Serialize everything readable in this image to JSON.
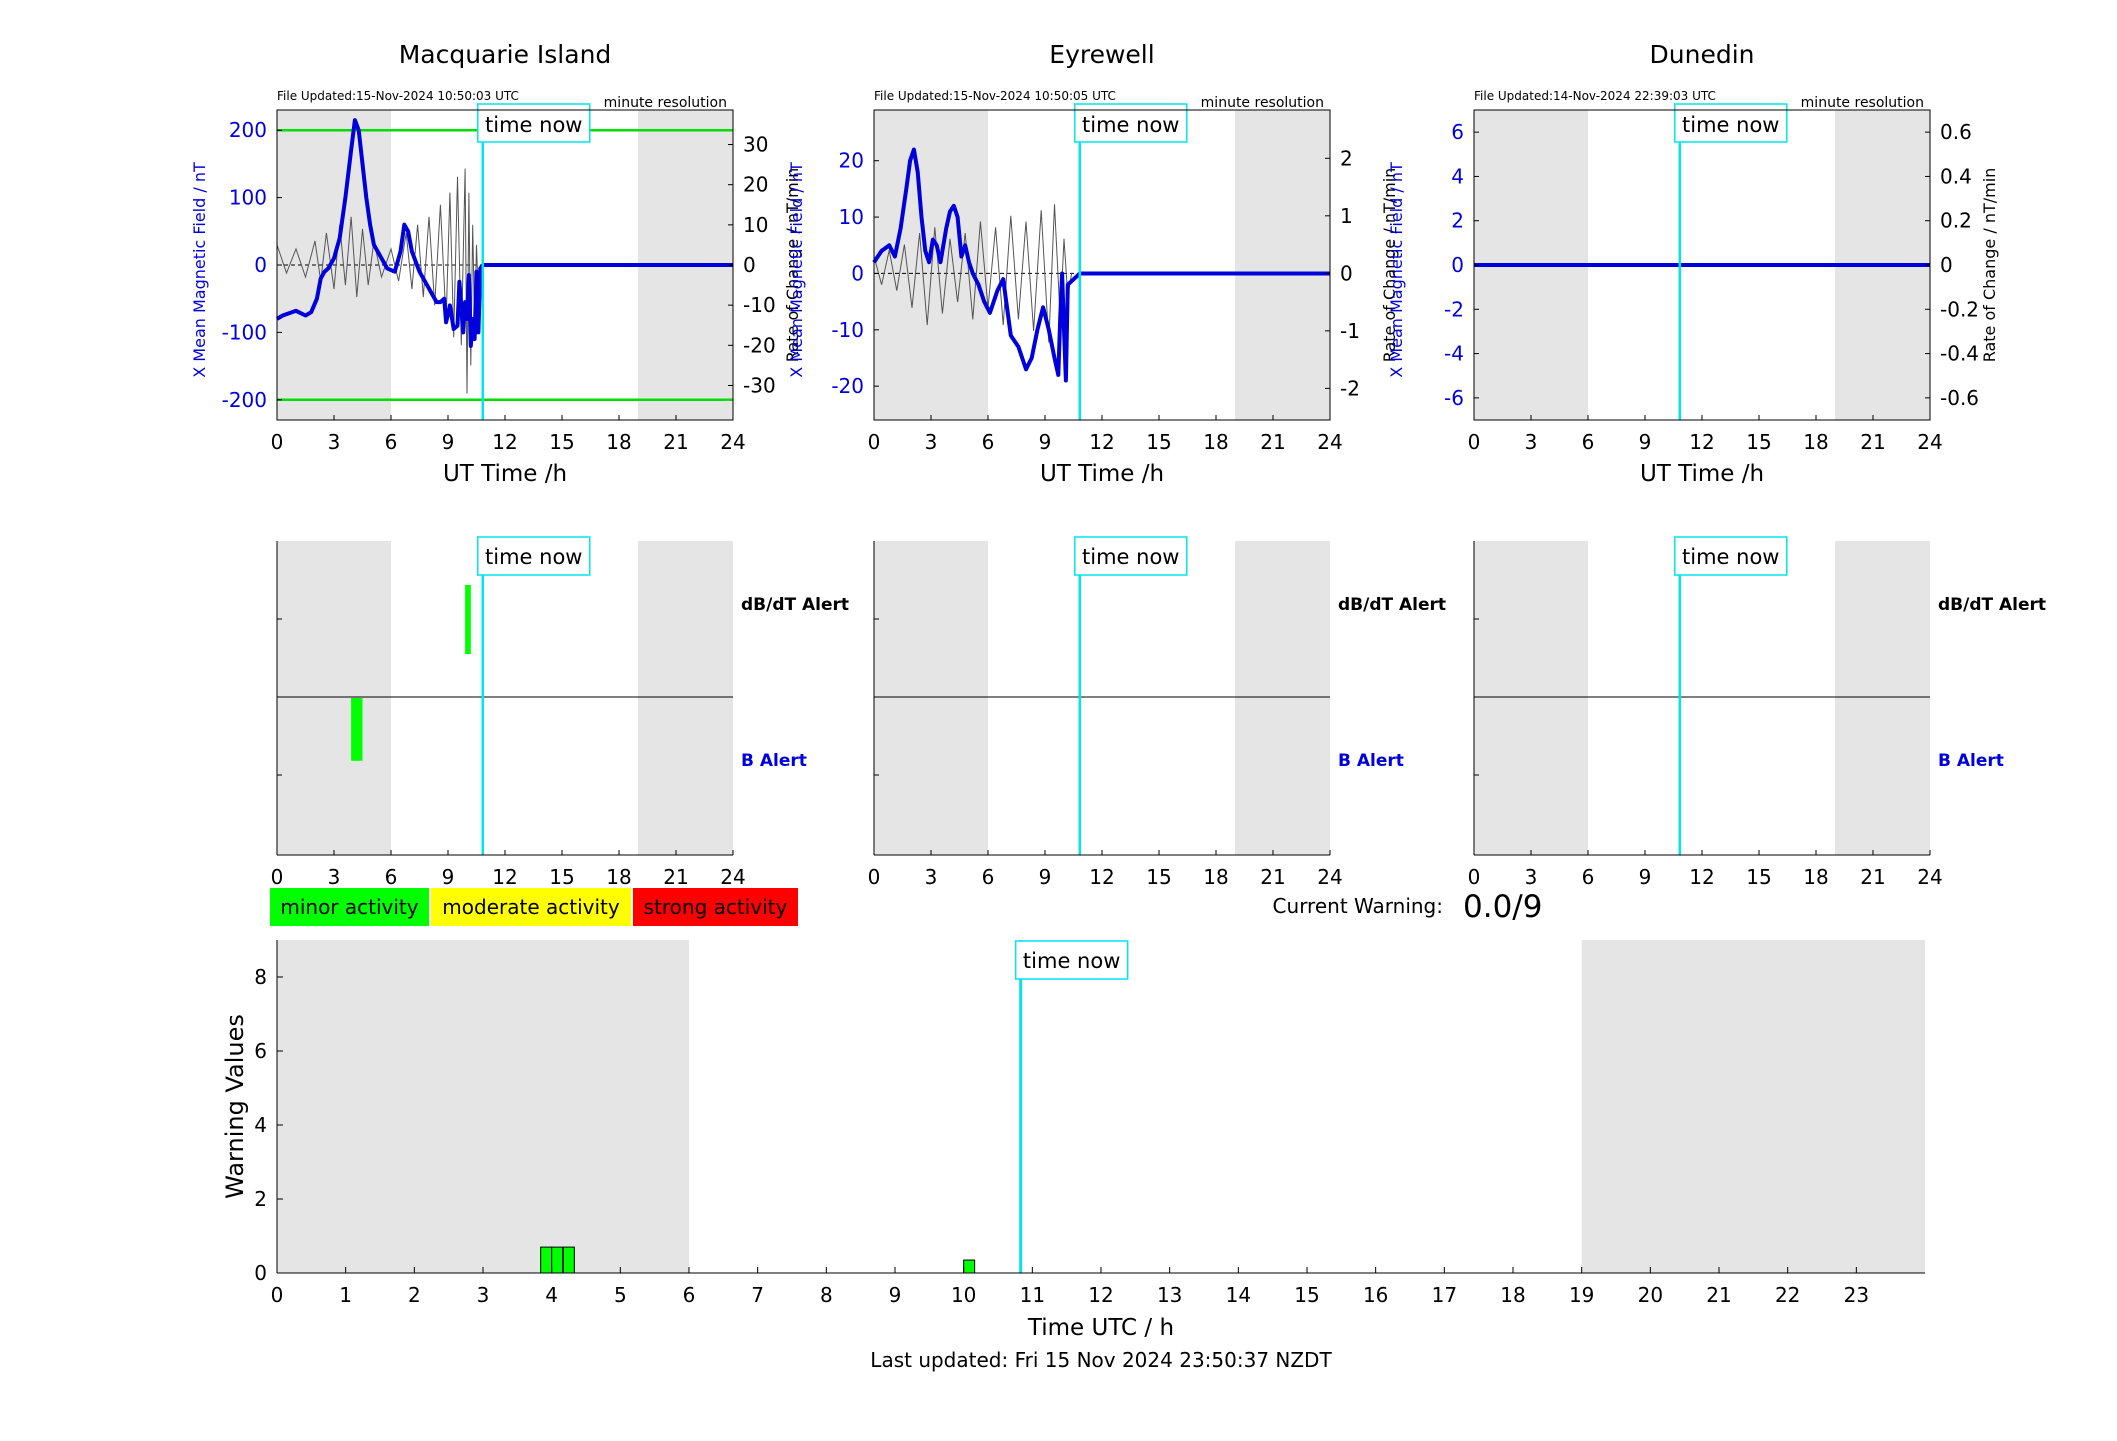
{
  "page": {
    "current_warning_label": "Current Warning:",
    "current_warning_value": "0.0/9",
    "last_updated": "Last updated: Fri 15 Nov 2024 23:50:37 NZDT",
    "time_now_label": "time now",
    "time_now_hour": 10.83,
    "night_shading": [
      [
        0,
        6
      ],
      [
        19,
        24
      ]
    ],
    "minute_resolution_label": "minute resolution",
    "rate_axis_label": "Rate of Change / nT/min",
    "b_axis_label": "X Mean Magnetic Field / nT",
    "ut_axis_label": "UT Time /h",
    "dbdt_alert_label": "dB/dT Alert",
    "b_alert_label": "B Alert",
    "hour_ticks": [
      "0",
      "3",
      "6",
      "9",
      "12",
      "15",
      "18",
      "21",
      "24"
    ]
  },
  "colors": {
    "b_line": "#0000dd",
    "rate_line": "#555555",
    "threshold": "#00dd00",
    "time_now": "#00e5ee",
    "night": "#e5e5e5",
    "minor": "#00ff00",
    "moderate": "#ffff00",
    "strong": "#ff0000"
  },
  "legend": {
    "minor": "minor activity",
    "moderate": "moderate activity",
    "strong": "strong activity"
  },
  "stations": [
    {
      "name": "Macquarie Island",
      "file_updated": "File Updated:15-Nov-2024 10:50:03 UTC",
      "ylim_b": [
        -230,
        230
      ],
      "yticks_b": [
        "200",
        "100",
        "0",
        "-100",
        "-200"
      ],
      "yticks_b_values": [
        200,
        100,
        0,
        -100,
        -200
      ],
      "ylim_rate": [
        -38.6,
        38.6
      ],
      "yticks_rate": [
        "30",
        "20",
        "10",
        "0",
        "-10",
        "-20",
        "-30"
      ],
      "yticks_rate_values": [
        30,
        20,
        10,
        0,
        -10,
        -20,
        -30
      ],
      "thresholds": [
        200,
        -200
      ],
      "b_series": [
        [
          0,
          -80
        ],
        [
          0.3,
          -75
        ],
        [
          0.6,
          -72
        ],
        [
          1,
          -68
        ],
        [
          1.5,
          -75
        ],
        [
          1.8,
          -70
        ],
        [
          2.1,
          -50
        ],
        [
          2.3,
          -20
        ],
        [
          2.5,
          -10
        ],
        [
          2.7,
          -5
        ],
        [
          3,
          10
        ],
        [
          3.3,
          40
        ],
        [
          3.6,
          100
        ],
        [
          3.9,
          170
        ],
        [
          4.1,
          215
        ],
        [
          4.3,
          200
        ],
        [
          4.5,
          150
        ],
        [
          4.7,
          100
        ],
        [
          4.9,
          60
        ],
        [
          5.1,
          30
        ],
        [
          5.4,
          15
        ],
        [
          5.8,
          -5
        ],
        [
          6.2,
          -10
        ],
        [
          6.5,
          20
        ],
        [
          6.7,
          60
        ],
        [
          6.9,
          50
        ],
        [
          7.1,
          20
        ],
        [
          7.3,
          5
        ],
        [
          7.5,
          -10
        ],
        [
          7.8,
          -25
        ],
        [
          8.1,
          -40
        ],
        [
          8.4,
          -55
        ],
        [
          8.6,
          -55
        ],
        [
          8.8,
          -50
        ],
        [
          8.9,
          -85
        ],
        [
          9.1,
          -60
        ],
        [
          9.3,
          -95
        ],
        [
          9.5,
          -90
        ],
        [
          9.6,
          -25
        ],
        [
          9.8,
          -100
        ],
        [
          9.9,
          -55
        ],
        [
          10,
          -80
        ],
        [
          10.1,
          -15
        ],
        [
          10.2,
          -120
        ],
        [
          10.3,
          -80
        ],
        [
          10.4,
          -110
        ],
        [
          10.5,
          -10
        ],
        [
          10.6,
          -100
        ],
        [
          10.7,
          -5
        ],
        [
          10.83,
          0
        ],
        [
          24,
          0
        ]
      ],
      "rate_series": [
        [
          0,
          5
        ],
        [
          0.5,
          -2
        ],
        [
          1,
          4
        ],
        [
          1.5,
          -3
        ],
        [
          2,
          6
        ],
        [
          2.3,
          -4
        ],
        [
          2.6,
          8
        ],
        [
          3,
          -6
        ],
        [
          3.3,
          10
        ],
        [
          3.6,
          -5
        ],
        [
          3.9,
          12
        ],
        [
          4.2,
          -8
        ],
        [
          4.5,
          9
        ],
        [
          4.8,
          -5
        ],
        [
          5.1,
          6
        ],
        [
          5.5,
          -3
        ],
        [
          6,
          4
        ],
        [
          6.4,
          -4
        ],
        [
          6.8,
          8
        ],
        [
          7.1,
          -6
        ],
        [
          7.4,
          10
        ],
        [
          7.7,
          -8
        ],
        [
          8,
          12
        ],
        [
          8.3,
          -10
        ],
        [
          8.6,
          15
        ],
        [
          8.9,
          -14
        ],
        [
          9.1,
          18
        ],
        [
          9.3,
          -18
        ],
        [
          9.5,
          22
        ],
        [
          9.7,
          -20
        ],
        [
          9.9,
          24
        ],
        [
          10,
          -32
        ],
        [
          10.1,
          18
        ],
        [
          10.2,
          -25
        ],
        [
          10.3,
          10
        ],
        [
          10.4,
          -15
        ],
        [
          10.5,
          5
        ],
        [
          10.6,
          -8
        ],
        [
          10.7,
          0
        ]
      ],
      "dbdt_alerts": [
        [
          9.9,
          10.2,
          0.14,
          0.36
        ]
      ],
      "b_alerts": [
        [
          3.9,
          4.5,
          0.5,
          0.7
        ]
      ]
    },
    {
      "name": "Eyrewell",
      "file_updated": "File Updated:15-Nov-2024 10:50:05 UTC",
      "ylim_b": [
        -26,
        29
      ],
      "yticks_b": [
        "20",
        "10",
        "0",
        "-10",
        "-20"
      ],
      "yticks_b_values": [
        20,
        10,
        0,
        -10,
        -20
      ],
      "ylim_rate": [
        -2.55,
        2.84
      ],
      "yticks_rate": [
        "2",
        "1",
        "0",
        "-1",
        "-2"
      ],
      "yticks_rate_values": [
        2,
        1,
        0,
        -1,
        -2
      ],
      "thresholds": [],
      "b_series": [
        [
          0,
          2
        ],
        [
          0.4,
          4
        ],
        [
          0.8,
          5
        ],
        [
          1.1,
          3
        ],
        [
          1.4,
          8
        ],
        [
          1.7,
          15
        ],
        [
          1.9,
          20
        ],
        [
          2.1,
          22
        ],
        [
          2.3,
          18
        ],
        [
          2.5,
          10
        ],
        [
          2.7,
          4
        ],
        [
          2.9,
          2
        ],
        [
          3.1,
          6
        ],
        [
          3.3,
          5
        ],
        [
          3.5,
          2
        ],
        [
          3.8,
          8
        ],
        [
          4,
          11
        ],
        [
          4.2,
          12
        ],
        [
          4.4,
          10
        ],
        [
          4.6,
          3
        ],
        [
          4.8,
          5
        ],
        [
          5,
          2
        ],
        [
          5.2,
          0
        ],
        [
          5.5,
          -2
        ],
        [
          5.8,
          -5
        ],
        [
          6.1,
          -7
        ],
        [
          6.5,
          -3
        ],
        [
          6.8,
          -1
        ],
        [
          7,
          -6
        ],
        [
          7.2,
          -11
        ],
        [
          7.4,
          -12
        ],
        [
          7.6,
          -13
        ],
        [
          7.8,
          -15
        ],
        [
          8,
          -17
        ],
        [
          8.3,
          -15
        ],
        [
          8.6,
          -10
        ],
        [
          8.9,
          -6
        ],
        [
          9.2,
          -10
        ],
        [
          9.5,
          -15
        ],
        [
          9.7,
          -18
        ],
        [
          9.8,
          -8
        ],
        [
          9.9,
          0
        ],
        [
          10,
          -10
        ],
        [
          10.1,
          -19
        ],
        [
          10.2,
          -2
        ],
        [
          10.83,
          0
        ],
        [
          24,
          0
        ]
      ],
      "rate_series": [
        [
          0,
          0.3
        ],
        [
          0.4,
          -0.2
        ],
        [
          0.8,
          0.4
        ],
        [
          1.2,
          -0.3
        ],
        [
          1.6,
          0.5
        ],
        [
          2,
          -0.6
        ],
        [
          2.4,
          0.7
        ],
        [
          2.8,
          -0.9
        ],
        [
          3.2,
          0.8
        ],
        [
          3.6,
          -0.7
        ],
        [
          4,
          0.6
        ],
        [
          4.4,
          -0.5
        ],
        [
          4.8,
          0.7
        ],
        [
          5.2,
          -0.8
        ],
        [
          5.6,
          0.9
        ],
        [
          6,
          -0.6
        ],
        [
          6.4,
          0.8
        ],
        [
          6.8,
          -0.9
        ],
        [
          7.2,
          1
        ],
        [
          7.6,
          -0.8
        ],
        [
          8,
          0.9
        ],
        [
          8.4,
          -1
        ],
        [
          8.8,
          1.1
        ],
        [
          9.2,
          -1.2
        ],
        [
          9.5,
          1.2
        ],
        [
          9.8,
          -0.8
        ],
        [
          10,
          0.6
        ],
        [
          10.2,
          -0.4
        ],
        [
          10.4,
          0
        ]
      ],
      "dbdt_alerts": [],
      "b_alerts": []
    },
    {
      "name": "Dunedin",
      "file_updated": "File Updated:14-Nov-2024 22:39:03 UTC",
      "ylim_b": [
        -7,
        7
      ],
      "yticks_b": [
        "6",
        "4",
        "2",
        "0",
        "-2",
        "-4",
        "-6"
      ],
      "yticks_b_values": [
        6,
        4,
        2,
        0,
        -2,
        -4,
        -6
      ],
      "ylim_rate": [
        -0.7,
        0.7
      ],
      "yticks_rate": [
        "0.6",
        "0.4",
        "0.2",
        "0",
        "-0.2",
        "-0.4",
        "-0.6"
      ],
      "yticks_rate_values": [
        0.6,
        0.4,
        0.2,
        0,
        -0.2,
        -0.4,
        -0.6
      ],
      "thresholds": [],
      "b_series": [
        [
          0,
          0
        ],
        [
          24,
          0
        ]
      ],
      "rate_series": [],
      "dbdt_alerts": [],
      "b_alerts": []
    }
  ],
  "chart_data": {
    "type": "bar",
    "xlabel": "Time UTC / h",
    "ylabel": "Warning Values",
    "xlim": [
      0,
      24
    ],
    "ylim": [
      0,
      9
    ],
    "xticks": [
      "0",
      "1",
      "2",
      "3",
      "4",
      "5",
      "6",
      "7",
      "8",
      "9",
      "10",
      "11",
      "12",
      "13",
      "14",
      "15",
      "16",
      "17",
      "18",
      "19",
      "20",
      "21",
      "22",
      "23"
    ],
    "yticks": [
      "0",
      "2",
      "4",
      "6",
      "8"
    ],
    "bars": [
      {
        "x": 3.92,
        "value": 0.7
      },
      {
        "x": 4.08,
        "value": 0.7
      },
      {
        "x": 4.25,
        "value": 0.7
      },
      {
        "x": 10.08,
        "value": 0.35
      }
    ],
    "bar_width": 0.16
  }
}
